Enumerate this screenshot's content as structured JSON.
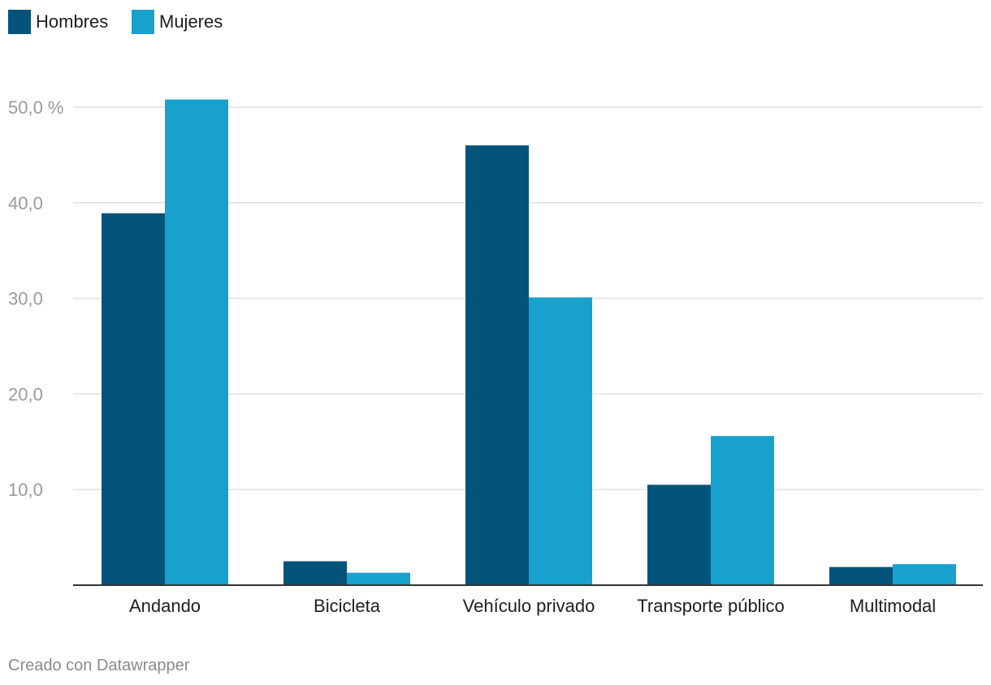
{
  "colors": {
    "hombres": "#04537b",
    "mujeres": "#18a1cd",
    "grid": "#e0e0e0",
    "axis": "#333333",
    "tick_text": "#9a9a9a",
    "label_text": "#1d1d1d",
    "footer_text": "#8a8a8a"
  },
  "legend": {
    "placement": "top-left",
    "items": [
      {
        "label": "Hombres",
        "color": "#04537b"
      },
      {
        "label": "Mujeres",
        "color": "#18a1cd"
      }
    ]
  },
  "footer": {
    "credit": "Creado con Datawrapper"
  },
  "chart_data": {
    "type": "bar",
    "categories": [
      "Andando",
      "Bicicleta",
      "Vehículo privado",
      "Transporte público",
      "Multimodal"
    ],
    "series": [
      {
        "name": "Hombres",
        "values": [
          38.9,
          2.5,
          46.0,
          10.5,
          1.9
        ]
      },
      {
        "name": "Mujeres",
        "values": [
          50.8,
          1.3,
          30.1,
          15.6,
          2.2
        ]
      }
    ],
    "y_ticks": [
      10,
      20,
      30,
      40,
      50
    ],
    "y_tick_labels": [
      "10,0",
      "20,0",
      "30,0",
      "40,0",
      "50,0 %"
    ],
    "ylim": [
      0,
      50
    ],
    "grid": true,
    "title": "",
    "xlabel": "",
    "ylabel": ""
  }
}
